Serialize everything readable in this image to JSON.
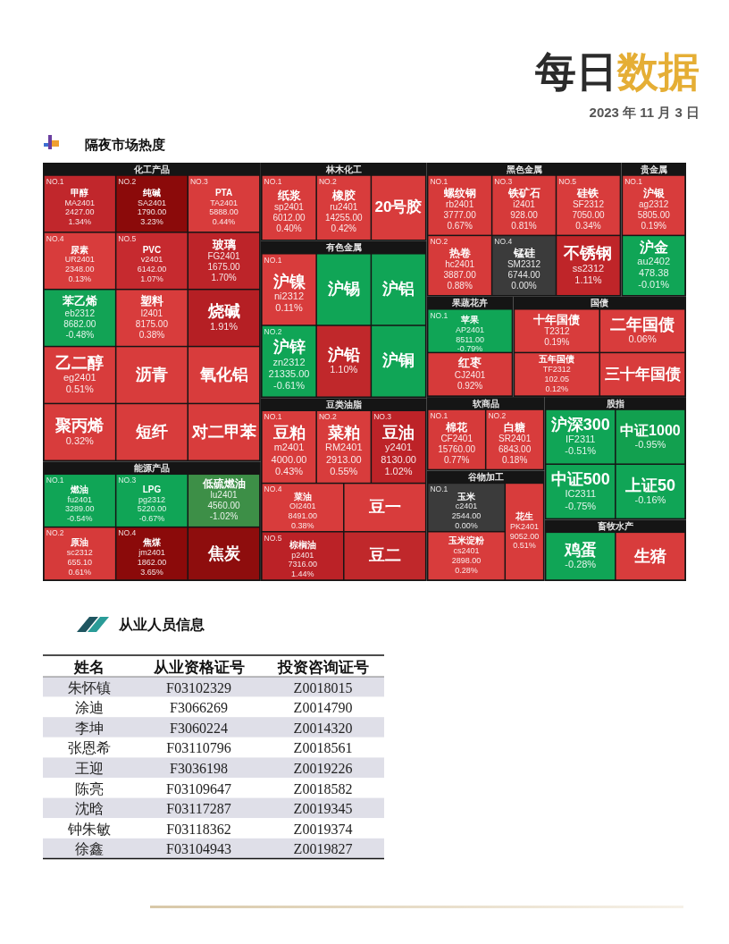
{
  "chart_data": [
    {
      "type": "other",
      "title": "每日数据",
      "subtitle": "2023 年 11 月 3 日"
    },
    {
      "type": "other",
      "title": "隔夜市场热度"
    },
    {
      "type": "other",
      "title": "化工产品",
      "categories": [
        "甲醇\nMA2401\n2427.00",
        "纯碱\nSA2401\n1790.00",
        "PTA\nTA2401\n5888.00",
        "尿素\nUR2401\n2348.00",
        "PVC\nv2401\n6142.00",
        "玻璃\nFG2401\n1675.00",
        "苯乙烯\neb2312\n8682.00",
        "乙二醇\neg2401",
        "聚丙烯",
        "塑料\nl2401\n8175.00",
        "烧碱",
        "沥青",
        "短纤",
        "氧化铝",
        "对二甲苯"
      ],
      "annotations": [
        "NO.1",
        "NO.2",
        "NO.3",
        "NO.4",
        "NO.5"
      ],
      "series": [
        {
          "values": [
            1.34,
            3.23,
            0.44,
            0.13,
            1.07,
            1.7,
            -0.48,
            0.51,
            0.32,
            0.38,
            1.91,
            null,
            null,
            null,
            null
          ],
          "value_labels": [
            "1.34%",
            "3.23%",
            "0.44%",
            "0.13%",
            "1.07%",
            "1.70%",
            "-0.48%",
            "0.51%",
            "0.32%",
            "0.38%",
            "1.91%",
            null,
            null,
            null,
            null
          ],
          "colors": [
            "#c1272c",
            "#8b0a0a",
            "#d83c3c",
            "#d83c3c",
            "#c62a2f",
            "#bd2429",
            "#12a355",
            "#d83c3c",
            "#d83c3c",
            "#d83c3c",
            "#b51f24",
            "#d83c3c",
            "#d83c3c",
            "#d83c3c",
            "#d83c3c"
          ]
        }
      ]
    },
    {
      "type": "other",
      "title": "能源产品",
      "categories": [
        "燃油\nfu2401\n3289.00",
        "原油\nsc2312\n655.10",
        "LPG\npg2312\n5220.00",
        "焦煤\njm2401\n1862.00",
        "低硫燃油\nlu2401\n4560.00",
        "焦炭"
      ],
      "annotations": [
        "NO.1",
        "NO.2",
        "NO.3",
        "NO.4"
      ],
      "series": [
        {
          "values": [
            -0.54,
            0.61,
            -0.67,
            3.65,
            -1.02,
            null
          ],
          "value_labels": [
            "-0.54%",
            "0.61%",
            "-0.67%",
            "3.65%",
            "-1.02%",
            null
          ],
          "colors": [
            "#10a556",
            "#d63a3a",
            "#10a556",
            "#8b0a0a",
            "#3d8f47",
            "#8e0d0d"
          ]
        }
      ]
    },
    {
      "type": "other",
      "title": "林木化工",
      "categories": [
        "纸浆\nsp2401\n6012.00",
        "橡胶\nru2401\n14255.00",
        "20号胶"
      ],
      "annotations": [
        "NO.1",
        "NO.2"
      ],
      "series": [
        {
          "values": [
            0.4,
            0.42,
            null
          ],
          "value_labels": [
            "0.40%",
            "0.42%",
            null
          ],
          "colors": [
            "#d83c3c",
            "#d83c3c",
            "#d83c3c"
          ]
        }
      ]
    },
    {
      "type": "other",
      "title": "有色金属",
      "categories": [
        "沪镍\nni2312",
        "沪锌\nzn2312\n21335.00",
        "沪锡",
        "沪铝",
        "沪铅",
        "沪铜"
      ],
      "annotations": [
        "NO.1",
        "NO.2"
      ],
      "series": [
        {
          "values": [
            0.11,
            -0.61,
            null,
            null,
            1.1,
            null
          ],
          "value_labels": [
            "0.11%",
            "-0.61%",
            null,
            null,
            "1.10%",
            null
          ],
          "colors": [
            "#d83c3c",
            "#10a556",
            "#10a556",
            "#10a556",
            "#c0282b",
            "#10a556"
          ]
        }
      ]
    },
    {
      "type": "other",
      "title": "豆类油脂",
      "categories": [
        "豆粕\nm2401\n4000.00",
        "菜粕\nRM2401\n2913.00",
        "豆油\ny2401\n8130.00",
        "菜油\nOI2401\n8491.00",
        "棕榈油\np2401\n7316.00",
        "豆一",
        "豆二"
      ],
      "annotations": [
        "NO.1",
        "NO.2",
        "NO.3",
        "NO.4",
        "NO.5"
      ],
      "series": [
        {
          "values": [
            0.43,
            0.55,
            1.02,
            0.38,
            1.44,
            null,
            null
          ],
          "value_labels": [
            "0.43%",
            "0.55%",
            "1.02%",
            "0.38%",
            "1.44%",
            null,
            null
          ],
          "colors": [
            "#d83c3c",
            "#d83c3c",
            "#bd2328",
            "#d83c3c",
            "#bb2227",
            "#d83c3c",
            "#c0282b"
          ]
        }
      ]
    },
    {
      "type": "other",
      "title": "黑色金属",
      "categories": [
        "螺纹钢\nrb2401\n3777.00",
        "热卷\nhc2401\n3887.00",
        "铁矿石\ni2401\n928.00",
        "锰硅\nSM2312\n6744.00",
        "硅铁\nSF2312\n7050.00",
        "不锈钢\nss2312"
      ],
      "annotations": [
        "NO.1",
        "NO.2",
        "NO.3",
        "NO.4",
        "NO.5"
      ],
      "series": [
        {
          "values": [
            0.67,
            0.88,
            0.81,
            0.0,
            0.34,
            1.11
          ],
          "value_labels": [
            "0.67%",
            "0.88%",
            "0.81%",
            "0.00%",
            "0.34%",
            "1.11%"
          ],
          "colors": [
            "#d63a3a",
            "#d63a3a",
            "#d63a3a",
            "#3b3b3b",
            "#d83c3c",
            "#bf2529"
          ]
        }
      ]
    },
    {
      "type": "other",
      "title": "贵金属",
      "categories": [
        "沪银\nag2312\n5805.00",
        "沪金\nau2402\n478.38"
      ],
      "annotations": [
        "NO.1"
      ],
      "series": [
        {
          "values": [
            0.19,
            -0.01
          ],
          "value_labels": [
            "0.19%",
            "-0.01%"
          ],
          "colors": [
            "#d83c3c",
            "#10a556"
          ]
        }
      ]
    },
    {
      "type": "other",
      "title": "果蔬花卉",
      "categories": [
        "苹果\nAP2401\n8511.00",
        "红枣\nCJ2401"
      ],
      "annotations": [
        "NO.1"
      ],
      "series": [
        {
          "values": [
            -0.79,
            0.92
          ],
          "value_labels": [
            "-0.79%",
            "0.92%"
          ],
          "colors": [
            "#10a556",
            "#d63a3a"
          ]
        }
      ]
    },
    {
      "type": "other",
      "title": "国债",
      "categories": [
        "十年国债\nT2312",
        "五年国债\nTF2312\n102.05",
        "二年国债",
        "三十年国债"
      ],
      "series": [
        {
          "values": [
            0.19,
            0.12,
            0.06,
            null
          ],
          "value_labels": [
            "0.19%",
            "0.12%",
            "0.06%",
            null
          ],
          "colors": [
            "#d83c3c",
            "#d83c3c",
            "#d83c3c",
            "#d83c3c"
          ]
        }
      ]
    },
    {
      "type": "other",
      "title": "软商品",
      "categories": [
        "棉花\nCF2401\n15760.00",
        "白糖\nSR2401\n6843.00"
      ],
      "annotations": [
        "NO.1",
        "NO.2"
      ],
      "series": [
        {
          "values": [
            0.77,
            0.18
          ],
          "value_labels": [
            "0.77%",
            "0.18%"
          ],
          "colors": [
            "#d63a3a",
            "#d83c3c"
          ]
        }
      ]
    },
    {
      "type": "other",
      "title": "谷物加工",
      "categories": [
        "玉米\nc2401\n2544.00",
        "玉米淀粉\ncs2401\n2898.00",
        "花生\nPK2401\n9052.00"
      ],
      "annotations": [
        "NO.1"
      ],
      "series": [
        {
          "values": [
            0.0,
            0.28,
            0.51
          ],
          "value_labels": [
            "0.00%",
            "0.28%",
            "0.51%"
          ],
          "colors": [
            "#3b3b3b",
            "#d83c3c",
            "#d83c3c"
          ]
        }
      ]
    },
    {
      "type": "other",
      "title": "股指",
      "categories": [
        "沪深300\nIF2311",
        "中证500\nIC2311",
        "中证1000",
        "上证50"
      ],
      "series": [
        {
          "values": [
            -0.51,
            -0.75,
            -0.95,
            -0.16
          ],
          "value_labels": [
            "-0.51%",
            "-0.75%",
            "-0.95%",
            "-0.16%"
          ],
          "colors": [
            "#10a556",
            "#10a556",
            "#12a04f",
            "#10a556"
          ]
        }
      ]
    },
    {
      "type": "other",
      "title": "畜牧水产",
      "categories": [
        "鸡蛋",
        "生猪"
      ],
      "series": [
        {
          "values": [
            -0.28,
            null
          ],
          "value_labels": [
            "-0.28%",
            null
          ],
          "colors": [
            "#10a556",
            "#d83c3c"
          ]
        }
      ]
    },
    {
      "type": "other",
      "title": "从业人员信息",
      "categories": [
        "姓名",
        "从业资格证号",
        "投资咨询证号"
      ],
      "cell_labels": [
        [
          "朱怀镇",
          "F03102329",
          "Z0018015"
        ],
        [
          "涂迪",
          "F3066269",
          "Z0014790"
        ],
        [
          "李坤",
          "F3060224",
          "Z0014320"
        ],
        [
          "张恩希",
          "F03110796",
          "Z0018561"
        ],
        [
          "王迎",
          "F3036198",
          "Z0019226"
        ],
        [
          "陈亮",
          "F03109647",
          "Z0018582"
        ],
        [
          "沈晗",
          "F03117287",
          "Z0019345"
        ],
        [
          "钟朱敏",
          "F03118362",
          "Z0019374"
        ],
        [
          "徐鑫",
          "F03104943",
          "Z0019827"
        ]
      ]
    }
  ]
}
